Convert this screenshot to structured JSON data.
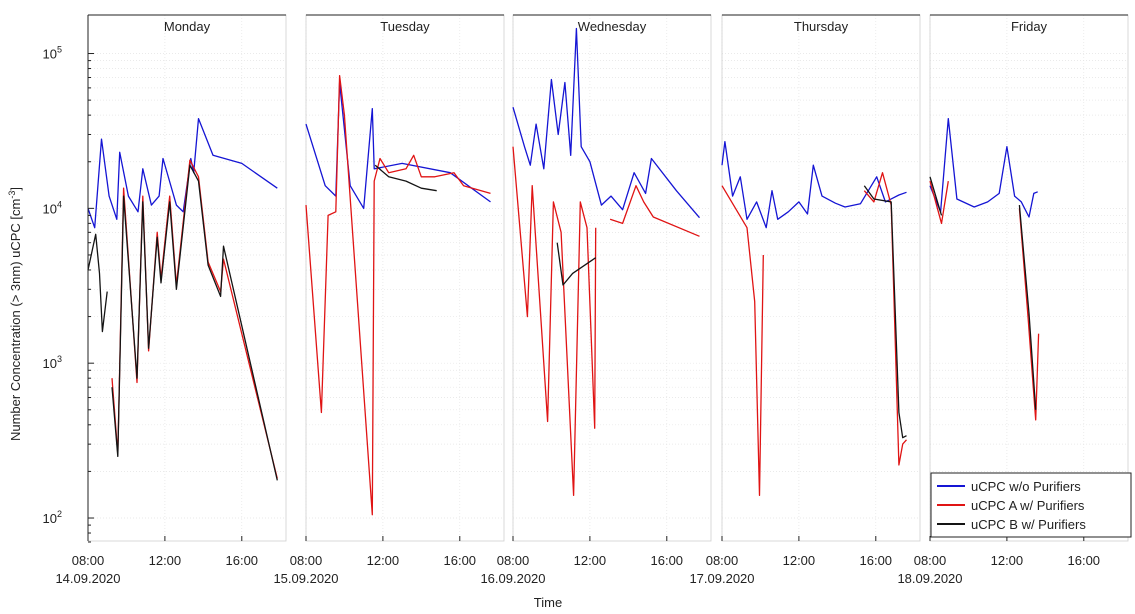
{
  "chart_data": {
    "type": "line",
    "ylabel": "Number Concentration (> 3nm) uCPC [cm",
    "ylabel_sup": "-3",
    "ylabel_tail": "]",
    "xlabel": "Time",
    "yscale": "log",
    "ylim": [
      70,
      180000
    ],
    "y_ticks": [
      {
        "value": 100,
        "base": "10",
        "exp": "2"
      },
      {
        "value": 1000,
        "base": "10",
        "exp": "3"
      },
      {
        "value": 10000,
        "base": "10",
        "exp": "4"
      },
      {
        "value": 100000,
        "base": "10",
        "exp": "5"
      }
    ],
    "x_unit": "hours (per day panel)",
    "day_range": [
      8,
      18.3
    ],
    "x_ticks": [
      {
        "day": 0,
        "hour": 8,
        "label": "08:00",
        "date": "14.09.2020"
      },
      {
        "day": 0,
        "hour": 12,
        "label": "12:00"
      },
      {
        "day": 0,
        "hour": 16,
        "label": "16:00"
      },
      {
        "day": 1,
        "hour": 8,
        "label": "08:00",
        "date": "15.09.2020"
      },
      {
        "day": 1,
        "hour": 12,
        "label": "12:00"
      },
      {
        "day": 1,
        "hour": 16,
        "label": "16:00"
      },
      {
        "day": 2,
        "hour": 8,
        "label": "08:00",
        "date": "16.09.2020"
      },
      {
        "day": 2,
        "hour": 12,
        "label": "12:00"
      },
      {
        "day": 2,
        "hour": 16,
        "label": "16:00"
      },
      {
        "day": 3,
        "hour": 8,
        "label": "08:00",
        "date": "17.09.2020"
      },
      {
        "day": 3,
        "hour": 12,
        "label": "12:00"
      },
      {
        "day": 3,
        "hour": 16,
        "label": "16:00"
      },
      {
        "day": 4,
        "hour": 8,
        "label": "08:00",
        "date": "18.09.2020"
      },
      {
        "day": 4,
        "hour": 12,
        "label": "12:00"
      },
      {
        "day": 4,
        "hour": 16,
        "label": "16:00"
      }
    ],
    "days": [
      {
        "name": "Monday",
        "date": "14.09.2020"
      },
      {
        "name": "Tuesday",
        "date": "15.09.2020"
      },
      {
        "name": "Wednesday",
        "date": "16.09.2020"
      },
      {
        "name": "Thursday",
        "date": "17.09.2020"
      },
      {
        "name": "Friday",
        "date": "18.09.2020"
      }
    ],
    "legend_position": "bottom-right",
    "series": [
      {
        "name": "uCPC w/o Purifiers",
        "color": "#1515d4",
        "segments": [
          [
            [
              0,
              8,
              10000
            ],
            [
              0,
              8.35,
              7500
            ],
            [
              0,
              8.7,
              28000
            ],
            [
              0,
              9.1,
              12000
            ],
            [
              0,
              9.5,
              8500
            ],
            [
              0,
              9.65,
              23000
            ],
            [
              0,
              10.1,
              12000
            ],
            [
              0,
              10.6,
              9500
            ],
            [
              0,
              10.85,
              18000
            ],
            [
              0,
              11.3,
              10500
            ],
            [
              0,
              11.7,
              12000
            ],
            [
              0,
              11.9,
              21000
            ],
            [
              0,
              12.6,
              10500
            ],
            [
              0,
              12.95,
              9500
            ],
            [
              0,
              13.35,
              21000
            ],
            [
              0,
              13.5,
              17000
            ],
            [
              0,
              13.75,
              38000
            ],
            [
              0,
              14.5,
              22000
            ],
            [
              0,
              16,
              19500
            ],
            [
              0,
              17.85,
              13500
            ]
          ],
          [
            [
              1,
              8,
              35000
            ],
            [
              1,
              9,
              14000
            ],
            [
              1,
              9.55,
              12000
            ],
            [
              1,
              9.75,
              65000
            ],
            [
              1,
              10.3,
              14000
            ],
            [
              1,
              11,
              10000
            ],
            [
              1,
              11.45,
              44000
            ],
            [
              1,
              11.55,
              18000
            ],
            [
              1,
              13,
              19500
            ],
            [
              1,
              15.5,
              17000
            ],
            [
              1,
              17.6,
              11000
            ]
          ],
          [
            [
              2,
              8,
              45000
            ],
            [
              2,
              8.6,
              25000
            ],
            [
              2,
              8.9,
              19000
            ],
            [
              2,
              9.2,
              35000
            ],
            [
              2,
              9.6,
              18000
            ],
            [
              2,
              10,
              68000
            ],
            [
              2,
              10.35,
              30000
            ],
            [
              2,
              10.7,
              65000
            ],
            [
              2,
              11,
              22000
            ],
            [
              2,
              11.3,
              145000
            ],
            [
              2,
              11.55,
              25000
            ],
            [
              2,
              12,
              20000
            ],
            [
              2,
              12.6,
              10500
            ],
            [
              2,
              13.1,
              12000
            ],
            [
              2,
              13.7,
              9800
            ],
            [
              2,
              14.3,
              17000
            ],
            [
              2,
              14.9,
              12500
            ],
            [
              2,
              15.2,
              21000
            ],
            [
              2,
              16.5,
              13000
            ],
            [
              2,
              17.7,
              8700
            ]
          ],
          [
            [
              3,
              8,
              19000
            ],
            [
              3,
              8.15,
              27000
            ],
            [
              3,
              8.55,
              12000
            ],
            [
              3,
              8.95,
              16000
            ],
            [
              3,
              9.3,
              8500
            ],
            [
              3,
              9.8,
              11000
            ],
            [
              3,
              10.3,
              7500
            ],
            [
              3,
              10.6,
              13000
            ],
            [
              3,
              10.9,
              8500
            ],
            [
              3,
              11.45,
              9500
            ],
            [
              3,
              12,
              11000
            ],
            [
              3,
              12.45,
              9200
            ],
            [
              3,
              12.75,
              19000
            ],
            [
              3,
              13.2,
              12000
            ],
            [
              3,
              13.9,
              10800
            ],
            [
              3,
              14.4,
              10200
            ],
            [
              3,
              15.2,
              10700
            ],
            [
              3,
              16.05,
              16000
            ],
            [
              3,
              16.5,
              11000
            ],
            [
              3,
              17.2,
              12200
            ],
            [
              3,
              17.6,
              12700
            ]
          ],
          [
            [
              4,
              8,
              14000
            ],
            [
              4,
              8.55,
              9500
            ],
            [
              4,
              8.95,
              38000
            ],
            [
              4,
              9.4,
              11500
            ],
            [
              4,
              10.3,
              10200
            ],
            [
              4,
              11,
              11000
            ],
            [
              4,
              11.6,
              12500
            ],
            [
              4,
              12,
              25000
            ],
            [
              4,
              12.4,
              12000
            ],
            [
              4,
              12.75,
              11000
            ],
            [
              4,
              13.15,
              8800
            ],
            [
              4,
              13.4,
              12500
            ],
            [
              4,
              13.6,
              12800
            ]
          ]
        ]
      },
      {
        "name": "uCPC A w/ Purifiers",
        "color": "#e01414",
        "segments": [
          [
            [
              0,
              9.25,
              800
            ],
            [
              0,
              9.55,
              260
            ],
            [
              0,
              9.85,
              13500
            ],
            [
              0,
              10.55,
              750
            ],
            [
              0,
              10.85,
              12000
            ],
            [
              0,
              11.15,
              1200
            ],
            [
              0,
              11.6,
              7000
            ],
            [
              0,
              11.8,
              3500
            ],
            [
              0,
              12.25,
              12000
            ],
            [
              0,
              12.6,
              3200
            ],
            [
              0,
              13.3,
              20500
            ],
            [
              0,
              13.75,
              16000
            ],
            [
              0,
              14.25,
              4500
            ],
            [
              0,
              14.9,
              2900
            ],
            [
              0,
              15.05,
              4700
            ],
            [
              0,
              17.85,
              180
            ]
          ],
          [
            [
              1,
              8,
              10500
            ],
            [
              1,
              8.8,
              480
            ],
            [
              1,
              9.15,
              9000
            ],
            [
              1,
              9.55,
              9500
            ],
            [
              1,
              9.75,
              72000
            ],
            [
              1,
              10,
              40000
            ],
            [
              1,
              11.45,
              105
            ],
            [
              1,
              11.55,
              15000
            ],
            [
              1,
              11.85,
              21000
            ],
            [
              1,
              12.3,
              17000
            ],
            [
              1,
              13.2,
              18000
            ],
            [
              1,
              13.6,
              22000
            ],
            [
              1,
              14,
              16000
            ],
            [
              1,
              14.7,
              16000
            ],
            [
              1,
              15.7,
              17000
            ],
            [
              1,
              16.2,
              14000
            ],
            [
              1,
              17.6,
              12500
            ]
          ],
          [
            [
              2,
              8,
              25000
            ],
            [
              2,
              8.75,
              2000
            ],
            [
              2,
              9,
              14000
            ],
            [
              2,
              9.8,
              420
            ],
            [
              2,
              10.1,
              11000
            ],
            [
              2,
              10.5,
              7000
            ],
            [
              2,
              11.15,
              140
            ],
            [
              2,
              11.5,
              11000
            ],
            [
              2,
              11.85,
              7500
            ],
            [
              2,
              12.25,
              380
            ],
            [
              2,
              12.3,
              7500
            ]
          ],
          [
            [
              2,
              13.05,
              8500
            ],
            [
              2,
              13.7,
              8000
            ],
            [
              2,
              14.4,
              14000
            ],
            [
              2,
              14.8,
              11000
            ],
            [
              2,
              15.3,
              8800
            ],
            [
              2,
              17.7,
              6600
            ]
          ],
          [
            [
              3,
              8,
              14000
            ],
            [
              3,
              9.3,
              7500
            ],
            [
              3,
              9.7,
              2500
            ],
            [
              3,
              9.95,
              140
            ],
            [
              3,
              10.15,
              5000
            ]
          ],
          [
            [
              3,
              15.4,
              13000
            ],
            [
              3,
              15.9,
              11000
            ],
            [
              3,
              16.35,
              17000
            ],
            [
              3,
              16.8,
              10500
            ],
            [
              3,
              17.2,
              220
            ],
            [
              3,
              17.4,
              300
            ],
            [
              3,
              17.6,
              320
            ]
          ],
          [
            [
              4,
              8,
              15000
            ],
            [
              4,
              8.6,
              8000
            ],
            [
              4,
              8.95,
              15000
            ]
          ],
          [
            [
              4,
              12.65,
              10000
            ],
            [
              4,
              13.1,
              2000
            ],
            [
              4,
              13.5,
              430
            ],
            [
              4,
              13.65,
              1550
            ]
          ]
        ]
      },
      {
        "name": "uCPC B w/ Purifiers",
        "color": "#141414",
        "segments": [
          [
            [
              0,
              8,
              4000
            ],
            [
              0,
              8.4,
              6800
            ],
            [
              0,
              8.6,
              3800
            ],
            [
              0,
              8.75,
              1600
            ],
            [
              0,
              9,
              2900
            ]
          ],
          [
            [
              0,
              9.25,
              700
            ],
            [
              0,
              9.55,
              250
            ],
            [
              0,
              9.85,
              12000
            ],
            [
              0,
              10.55,
              800
            ],
            [
              0,
              10.85,
              11000
            ],
            [
              0,
              11.15,
              1250
            ],
            [
              0,
              11.6,
              6500
            ],
            [
              0,
              11.8,
              3300
            ],
            [
              0,
              12.25,
              11000
            ],
            [
              0,
              12.6,
              3000
            ],
            [
              0,
              13.3,
              19000
            ],
            [
              0,
              13.75,
              15000
            ],
            [
              0,
              14.25,
              4300
            ],
            [
              0,
              14.9,
              2700
            ],
            [
              0,
              15.05,
              5700
            ],
            [
              0,
              17.85,
              175
            ]
          ],
          [
            [
              1,
              11.6,
              19000
            ],
            [
              1,
              12.3,
              16000
            ],
            [
              1,
              13.2,
              15000
            ],
            [
              1,
              14,
              13500
            ],
            [
              1,
              14.8,
              13000
            ]
          ],
          [
            [
              2,
              10.3,
              6000
            ],
            [
              2,
              10.6,
              3200
            ],
            [
              2,
              11.1,
              3800
            ],
            [
              2,
              12.3,
              4800
            ]
          ],
          [
            [
              3,
              15.4,
              14000
            ],
            [
              3,
              15.9,
              11500
            ],
            [
              3,
              16.8,
              11000
            ],
            [
              3,
              17.2,
              480
            ],
            [
              3,
              17.4,
              330
            ],
            [
              3,
              17.6,
              340
            ]
          ],
          [
            [
              4,
              8,
              16000
            ],
            [
              4,
              8.6,
              9000
            ]
          ],
          [
            [
              4,
              12.65,
              10500
            ],
            [
              4,
              13.15,
              2100
            ],
            [
              4,
              13.5,
              500
            ]
          ]
        ]
      }
    ]
  }
}
